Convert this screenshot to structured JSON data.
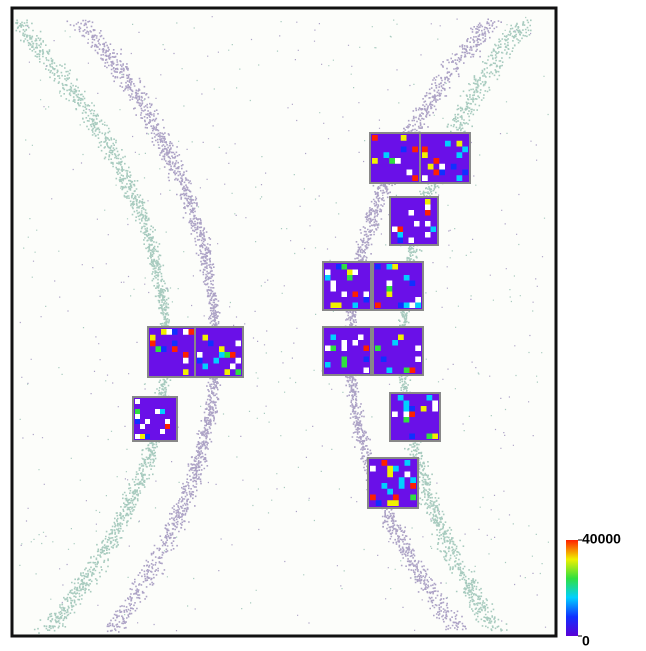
{
  "chart_data": {
    "type": "heatmap",
    "colorbar": {
      "lim": [
        0,
        40000
      ],
      "ticks": [
        0,
        40000
      ],
      "colors": [
        "#5a00d6",
        "#1030ff",
        "#00d0ff",
        "#30e040",
        "#f0f000",
        "#ff2000"
      ]
    }
  }
}
